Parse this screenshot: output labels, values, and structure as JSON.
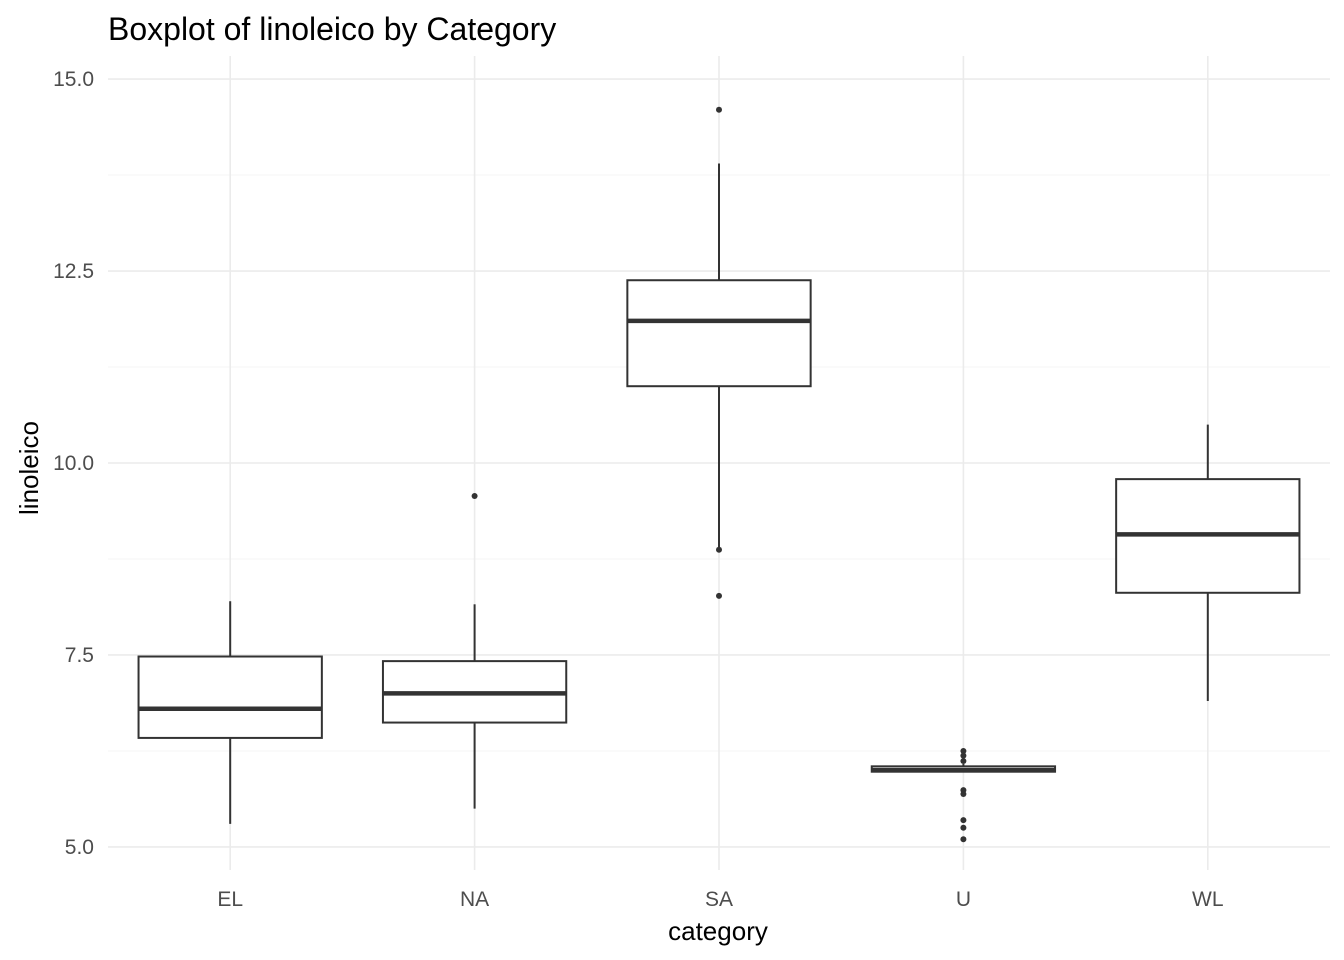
{
  "chart_data": {
    "type": "boxplot",
    "title": "Boxplot of linoleico by Category",
    "xlabel": "category",
    "ylabel": "linoleico",
    "ylim": [
      4.7,
      15.3
    ],
    "yticks": [
      5.0,
      7.5,
      10.0,
      12.5,
      15.0
    ],
    "ytick_labels": [
      "5.0",
      "7.5",
      "10.0",
      "12.5",
      "15.0"
    ],
    "ygrid_minor": [
      6.25,
      8.75,
      11.25,
      13.75
    ],
    "grid": true,
    "legend": "none",
    "colors": {
      "box_line": "#333333",
      "grid_major": "#ebebeb",
      "grid_minor": "#f4f4f4",
      "outlier": "#333333"
    },
    "categories": [
      "EL",
      "NA",
      "SA",
      "U",
      "WL"
    ],
    "boxes": [
      {
        "category": "EL",
        "whisker_low": 5.3,
        "q1": 6.42,
        "median": 6.8,
        "q3": 7.48,
        "whisker_high": 8.2,
        "outliers": []
      },
      {
        "category": "NA",
        "whisker_low": 5.5,
        "q1": 6.62,
        "median": 7.0,
        "q3": 7.42,
        "whisker_high": 8.16,
        "outliers": [
          9.57
        ]
      },
      {
        "category": "SA",
        "whisker_low": 8.9,
        "q1": 11.0,
        "median": 11.85,
        "q3": 12.38,
        "whisker_high": 13.9,
        "outliers": [
          14.6,
          8.87,
          8.27
        ]
      },
      {
        "category": "U",
        "whisker_low": 5.98,
        "q1": 5.98,
        "median": 6.0,
        "q3": 6.05,
        "whisker_high": 6.08,
        "outliers": [
          6.25,
          6.19,
          6.12,
          5.74,
          5.69,
          5.35,
          5.25,
          5.1
        ]
      },
      {
        "category": "WL",
        "whisker_low": 6.9,
        "q1": 8.31,
        "median": 9.07,
        "q3": 9.79,
        "whisker_high": 10.5,
        "outliers": []
      }
    ]
  }
}
